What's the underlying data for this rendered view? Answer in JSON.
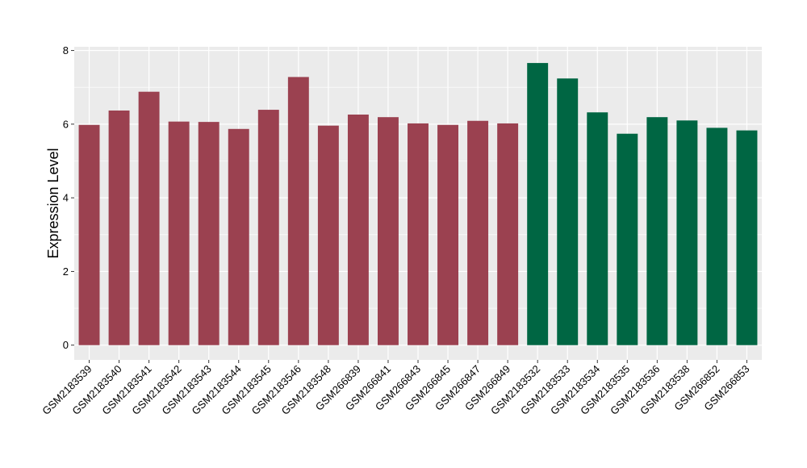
{
  "chart_data": {
    "type": "bar",
    "title": "",
    "xlabel": "",
    "ylabel": "Expression Level",
    "ylim": [
      -0.4,
      8.1
    ],
    "yticks": [
      0,
      2,
      4,
      6,
      8
    ],
    "grid": true,
    "legend": "none",
    "background_color": "#ebebeb",
    "grid_color": "#ffffff",
    "group_colors": [
      "#9b4150",
      "#006643"
    ],
    "categories": [
      "GSM2183539",
      "GSM2183540",
      "GSM2183541",
      "GSM2183542",
      "GSM2183543",
      "GSM2183544",
      "GSM2183545",
      "GSM2183546",
      "GSM2183548",
      "GSM266839",
      "GSM266841",
      "GSM266843",
      "GSM266845",
      "GSM266847",
      "GSM266849",
      "GSM2183532",
      "GSM2183533",
      "GSM2183534",
      "GSM2183535",
      "GSM2183536",
      "GSM2183538",
      "GSM266852",
      "GSM266853"
    ],
    "values": [
      5.98,
      6.37,
      6.88,
      6.07,
      6.06,
      5.87,
      6.39,
      7.28,
      5.96,
      6.26,
      6.19,
      6.02,
      5.98,
      6.09,
      6.02,
      7.66,
      7.24,
      6.32,
      5.74,
      6.19,
      6.1,
      5.9,
      5.83
    ],
    "groups": [
      0,
      0,
      0,
      0,
      0,
      0,
      0,
      0,
      0,
      0,
      0,
      0,
      0,
      0,
      0,
      1,
      1,
      1,
      1,
      1,
      1,
      1,
      1
    ]
  }
}
